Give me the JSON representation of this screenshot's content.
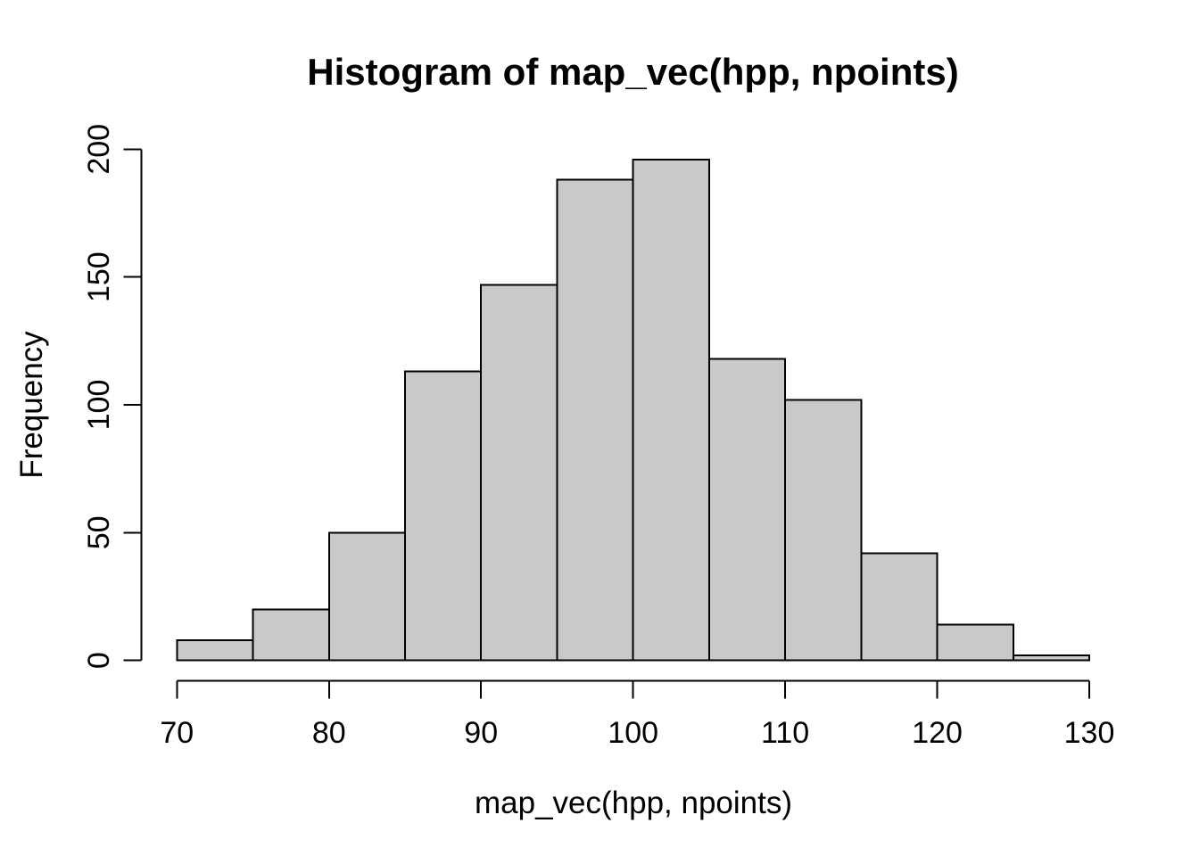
{
  "figure": {
    "title": "Histogram of map_vec(hpp, npoints)",
    "x_axis_label": "map_vec(hpp, npoints)",
    "y_axis_label": "Frequency"
  },
  "chart_data": {
    "type": "bar",
    "histogram": true,
    "title": "Histogram of map_vec(hpp, npoints)",
    "xlabel": "map_vec(hpp, npoints)",
    "ylabel": "Frequency",
    "bin_edges": [
      70,
      75,
      80,
      85,
      90,
      95,
      100,
      105,
      110,
      115,
      120,
      125,
      130
    ],
    "counts": [
      8,
      20,
      50,
      113,
      147,
      188,
      196,
      118,
      102,
      42,
      14,
      2
    ],
    "x_ticks": [
      70,
      80,
      90,
      100,
      110,
      120,
      130
    ],
    "y_ticks": [
      0,
      50,
      100,
      150,
      200
    ],
    "xlim": [
      70,
      130
    ],
    "ylim": [
      0,
      200
    ],
    "grid": false,
    "legend": false,
    "bar_fill": "#C9C9C9",
    "bar_stroke": "#000000",
    "axis_color": "#000000",
    "background": "#FFFFFF"
  }
}
